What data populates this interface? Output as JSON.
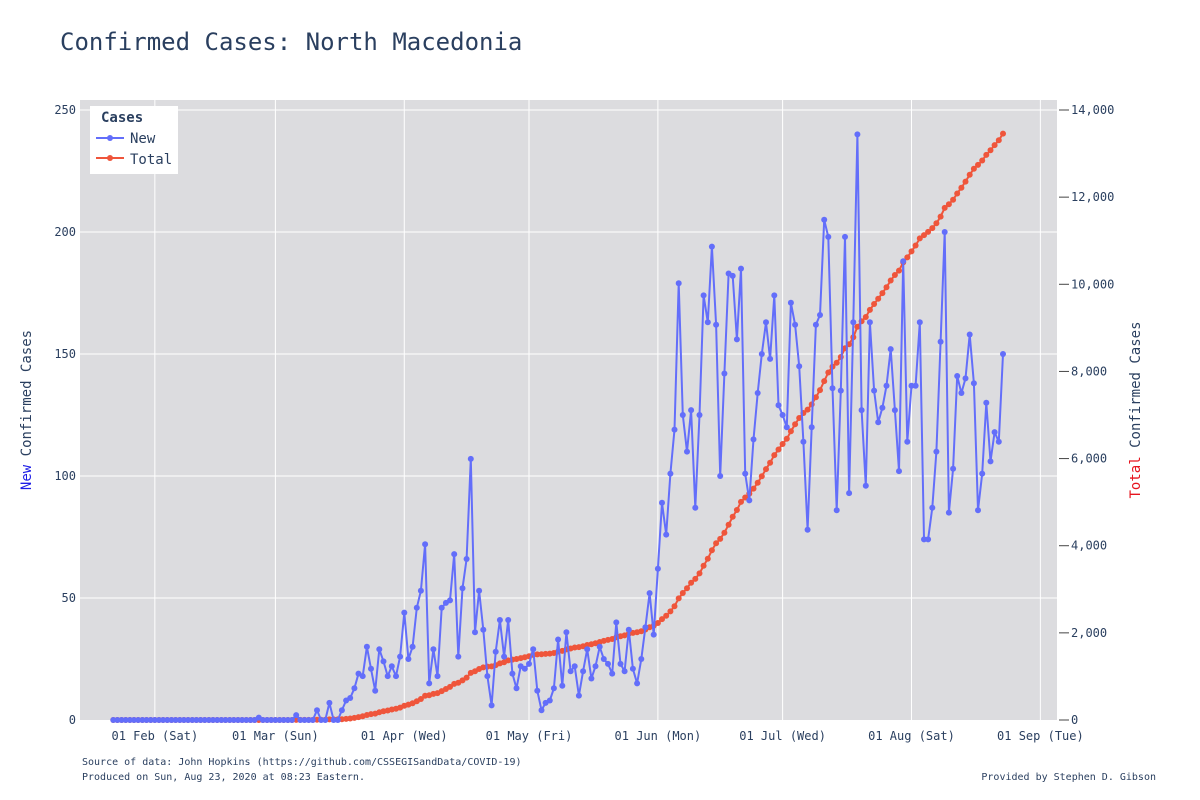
{
  "chart_data": {
    "type": "line",
    "title": "Confirmed Cases: North Macedonia",
    "legend": {
      "title": "Cases",
      "placement": "top-left"
    },
    "colors": {
      "new": "#636efa",
      "total": "#ef553b",
      "plot_bg": "#dcdcdf",
      "grid": "#ffffff"
    },
    "x_start_date": "2020-01-22",
    "x_range": [
      "2020-01-14",
      "2020-09-05"
    ],
    "xticks": [
      {
        "date": "2020-02-01",
        "label": "01 Feb (Sat)"
      },
      {
        "date": "2020-03-01",
        "label": "01 Mar (Sun)"
      },
      {
        "date": "2020-04-01",
        "label": "01 Apr (Wed)"
      },
      {
        "date": "2020-05-01",
        "label": "01 May (Fri)"
      },
      {
        "date": "2020-06-01",
        "label": "01 Jun (Mon)"
      },
      {
        "date": "2020-07-01",
        "label": "01 Jul (Wed)"
      },
      {
        "date": "2020-08-01",
        "label": "01 Aug (Sat)"
      },
      {
        "date": "2020-09-01",
        "label": "01 Sep (Tue)"
      }
    ],
    "y_left": {
      "label_prefix": "New",
      "label_rest": " Confirmed Cases",
      "range": [
        0,
        250
      ],
      "ticks": [
        0,
        50,
        100,
        150,
        200,
        250
      ],
      "tick_labels": [
        "0",
        "50",
        "100",
        "150",
        "200",
        "250"
      ]
    },
    "y_right": {
      "label_prefix": "Total",
      "label_rest": " Confirmed Cases",
      "range": [
        0,
        14000
      ],
      "ticks": [
        0,
        2000,
        4000,
        6000,
        8000,
        10000,
        12000,
        14000
      ],
      "tick_labels": [
        "0",
        "2,000",
        "4,000",
        "6,000",
        "8,000",
        "10,000",
        "12,000",
        "14,000"
      ]
    },
    "series": [
      {
        "name": "New",
        "axis": "left",
        "values": [
          0,
          0,
          0,
          0,
          0,
          0,
          0,
          0,
          0,
          0,
          0,
          0,
          0,
          0,
          0,
          0,
          0,
          0,
          0,
          0,
          0,
          0,
          0,
          0,
          0,
          0,
          0,
          0,
          0,
          0,
          0,
          0,
          0,
          0,
          0,
          1,
          0,
          0,
          0,
          0,
          0,
          0,
          0,
          0,
          2,
          0,
          0,
          0,
          0,
          4,
          0,
          0,
          7,
          0,
          0,
          4,
          8,
          9,
          13,
          19,
          18,
          30,
          21,
          12,
          29,
          24,
          18,
          22,
          18,
          26,
          44,
          25,
          30,
          46,
          53,
          72,
          15,
          29,
          18,
          46,
          48,
          49,
          68,
          26,
          54,
          66,
          107,
          36,
          53,
          37,
          18,
          6,
          28,
          41,
          26,
          41,
          19,
          13,
          22,
          21,
          23,
          29,
          12,
          4,
          7,
          8,
          13,
          33,
          14,
          36,
          20,
          22,
          10,
          20,
          29,
          17,
          22,
          30,
          25,
          23,
          19,
          40,
          23,
          20,
          37,
          21,
          15,
          25,
          38,
          52,
          35,
          62,
          89,
          76,
          101,
          119,
          179,
          125,
          110,
          127,
          87,
          125,
          174,
          163,
          194,
          162,
          100,
          142,
          183,
          182,
          156,
          185,
          101,
          90,
          115,
          134,
          150,
          163,
          148,
          174,
          129,
          125,
          120,
          171,
          162,
          145,
          114,
          78,
          120,
          162,
          166,
          205,
          198,
          136,
          86,
          135,
          198,
          93,
          163,
          240,
          127,
          96,
          163,
          135,
          122,
          128,
          137,
          152,
          127,
          102,
          188,
          114,
          137,
          137,
          163,
          74,
          74,
          87,
          110,
          155,
          200,
          85,
          103,
          141,
          134,
          140,
          158,
          138,
          86,
          101,
          130,
          106,
          118,
          114,
          150
        ]
      },
      {
        "name": "Total",
        "axis": "right",
        "values": [
          0,
          0,
          0,
          0,
          0,
          0,
          0,
          0,
          0,
          0,
          0,
          0,
          0,
          0,
          0,
          0,
          0,
          0,
          0,
          0,
          0,
          0,
          0,
          0,
          0,
          0,
          0,
          0,
          0,
          0,
          0,
          0,
          0,
          0,
          0,
          1,
          1,
          1,
          1,
          1,
          1,
          1,
          1,
          1,
          3,
          3,
          3,
          3,
          3,
          7,
          7,
          7,
          14,
          14,
          14,
          18,
          26,
          35,
          48,
          67,
          85,
          115,
          136,
          148,
          177,
          201,
          219,
          241,
          259,
          285,
          329,
          354,
          384,
          430,
          483,
          555,
          570,
          599,
          617,
          663,
          711,
          760,
          828,
          854,
          908,
          974,
          1081,
          1117,
          1170,
          1207,
          1225,
          1231,
          1259,
          1300,
          1326,
          1367,
          1386,
          1399,
          1421,
          1442,
          1465,
          1494,
          1506,
          1510,
          1517,
          1525,
          1538,
          1571,
          1585,
          1621,
          1641,
          1663,
          1673,
          1693,
          1722,
          1739,
          1761,
          1791,
          1816,
          1839,
          1858,
          1898,
          1921,
          1941,
          1978,
          1999,
          2014,
          2039,
          2077,
          2129,
          2164,
          2226,
          2315,
          2391,
          2492,
          2611,
          2790,
          2915,
          3025,
          3152,
          3239,
          3364,
          3538,
          3701,
          3895,
          4057,
          4157,
          4299,
          4482,
          4664,
          4820,
          5005,
          5106,
          5196,
          5311,
          5445,
          5595,
          5758,
          5906,
          6080,
          6209,
          6334,
          6454,
          6625,
          6787,
          6932,
          7046,
          7124,
          7244,
          7406,
          7572,
          7777,
          7975,
          8111,
          8197,
          8332,
          8530,
          8623,
          8786,
          9026,
          9153,
          9249,
          9412,
          9547,
          9669,
          9797,
          9934,
          10086,
          10213,
          10315,
          10503,
          10617,
          10754,
          10891,
          11054,
          11128,
          11202,
          11289,
          11399,
          11554,
          11754,
          11839,
          11942,
          12083,
          12217,
          12357,
          12515,
          12653,
          12739,
          12840,
          12970,
          13076,
          13194,
          13308,
          13458
        ]
      }
    ]
  },
  "footer": {
    "source": "Source of data: John Hopkins (https://github.com/CSSEGISandData/COVID-19)",
    "produced": "Produced on Sun, Aug 23, 2020 at 08:23 Eastern.",
    "credit": "Provided by Stephen D. Gibson"
  }
}
